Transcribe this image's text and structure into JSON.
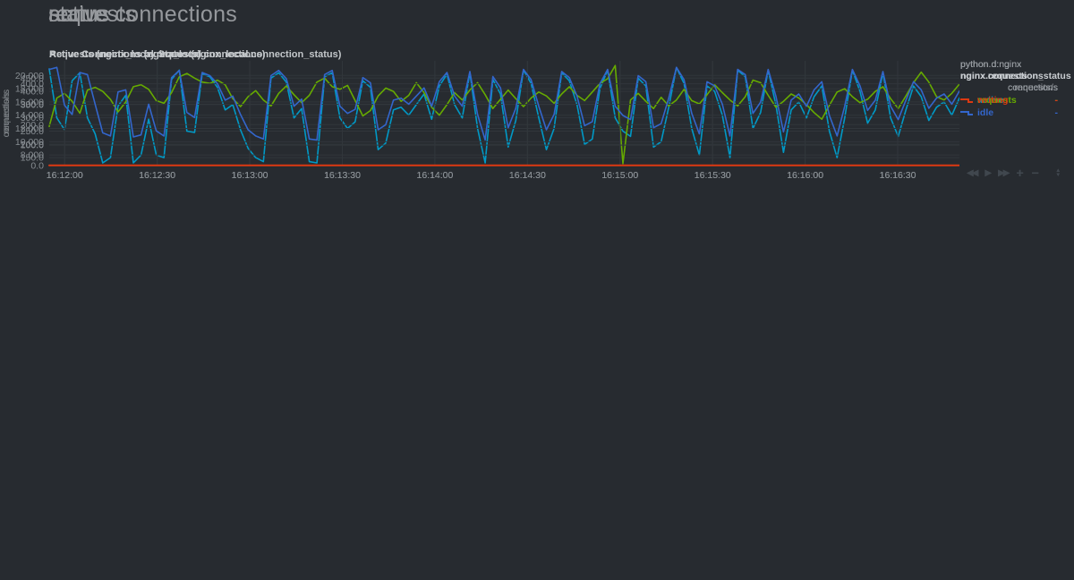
{
  "page": {
    "background": "#272b30",
    "grid_color": "#31363b",
    "tick_label_color": "#878d92",
    "axis_title_color": "#7b8085"
  },
  "toolbar": {
    "icons": [
      {
        "name": "pan-backward-icon",
        "glyph": "◀◀",
        "big": false
      },
      {
        "name": "play-icon",
        "glyph": "▶",
        "big": false
      },
      {
        "name": "fast-forward-icon",
        "glyph": "▶▶",
        "big": false
      },
      {
        "name": "zoom-in-icon",
        "glyph": "+",
        "big": true
      },
      {
        "name": "zoom-out-icon",
        "glyph": "−",
        "big": true
      }
    ],
    "resize_handle": {
      "name": "resize-handle-icon",
      "glyph_up": "▴",
      "glyph_down": "▾"
    }
  },
  "chart_data": [
    {
      "type": "line",
      "section_heading": "active connections",
      "title": "Active Connections (nginx_local.connections)",
      "ylabel": "connections",
      "unit": "connections",
      "source_label": "python.d:nginx",
      "context_label": "nginx.connections",
      "xlim_seconds": [
        0,
        295
      ],
      "x_start_time": "16:11:55",
      "x_tick_seconds": [
        5,
        35,
        65,
        95,
        125,
        155,
        185,
        215,
        245,
        275
      ],
      "x_tick_labels": [
        "16:12:00",
        "16:12:30",
        "16:13:00",
        "16:13:30",
        "16:14:00",
        "16:14:30",
        "16:15:00",
        "16:15:30",
        "16:16:00",
        "16:16:30"
      ],
      "ylim": [
        120,
        515
      ],
      "yticks": [
        {
          "v": 150,
          "label": "150.0"
        },
        {
          "v": 200,
          "label": "200.0"
        },
        {
          "v": 250,
          "label": "250.0"
        },
        {
          "v": 300,
          "label": "300.0"
        },
        {
          "v": 350,
          "label": "350.0"
        },
        {
          "v": 400,
          "label": "400.0"
        },
        {
          "v": 450,
          "label": "450.0"
        }
      ],
      "legend_position": "right",
      "grid": true,
      "series": [
        {
          "name": "active",
          "color": "#0099C6",
          "value": "-",
          "width": 1.6,
          "values": [
            485,
            300,
            255,
            440,
            470,
            300,
            240,
            130,
            150,
            345,
            385,
            130,
            160,
            295,
            160,
            150,
            445,
            480,
            250,
            245,
            465,
            455,
            415,
            330,
            350,
            255,
            185,
            150,
            135,
            450,
            470,
            435,
            300,
            335,
            135,
            130,
            455,
            470,
            300,
            260,
            285,
            440,
            415,
            180,
            205,
            330,
            340,
            310,
            350,
            390,
            295,
            420,
            465,
            350,
            300,
            470,
            260,
            130,
            445,
            390,
            190,
            290,
            480,
            430,
            300,
            180,
            260,
            470,
            440,
            350,
            200,
            220,
            410,
            480,
            300,
            250,
            230,
            450,
            420,
            190,
            210,
            340,
            490,
            430,
            260,
            160,
            420,
            400,
            310,
            150,
            480,
            455,
            260,
            320,
            480,
            350,
            170,
            330,
            360,
            300,
            380,
            420,
            250,
            150,
            300,
            480,
            400,
            280,
            330,
            470,
            300,
            230,
            330,
            420,
            380,
            290,
            340,
            360,
            310,
            375
          ]
        }
      ]
    },
    {
      "type": "line",
      "section_heading": "requests",
      "title": "Requests (nginx_local.requests)",
      "ylabel": "requests/s",
      "unit": "requests/s",
      "source_label": "python.d:nginx",
      "context_label": "nginx.requests",
      "xlim_seconds": [
        0,
        295
      ],
      "x_start_time": "16:11:55",
      "x_tick_seconds": [
        5,
        35,
        65,
        95,
        125,
        155,
        185,
        215,
        245,
        275
      ],
      "x_tick_labels": [
        "16:12:00",
        "16:12:30",
        "16:13:00",
        "16:13:30",
        "16:14:00",
        "16:14:30",
        "16:15:00",
        "16:15:30",
        "16:16:00",
        "16:16:30"
      ],
      "ylim": [
        6400,
        22200
      ],
      "yticks": [
        {
          "v": 8000,
          "label": "8,000"
        },
        {
          "v": 10000,
          "label": "10,000"
        },
        {
          "v": 12000,
          "label": "12,000"
        },
        {
          "v": 14000,
          "label": "14,000"
        },
        {
          "v": 16000,
          "label": "16,000"
        },
        {
          "v": 18000,
          "label": "18,000"
        },
        {
          "v": 20000,
          "label": "20,000"
        }
      ],
      "legend_position": "right",
      "grid": true,
      "series": [
        {
          "name": "requests",
          "color": "#66AA00",
          "value": "-",
          "width": 1.6,
          "values": [
            12300,
            16600,
            17300,
            16100,
            14300,
            17800,
            18200,
            17600,
            16400,
            14500,
            16000,
            18300,
            18600,
            17900,
            16200,
            15800,
            17400,
            19800,
            20300,
            19600,
            19000,
            18800,
            19300,
            18600,
            16500,
            15300,
            16800,
            17700,
            16300,
            15400,
            17300,
            18400,
            17100,
            15900,
            17000,
            19000,
            19600,
            18300,
            17900,
            18500,
            16200,
            13900,
            14700,
            16900,
            18100,
            17600,
            16100,
            17000,
            18900,
            17400,
            15200,
            14000,
            15600,
            17400,
            16300,
            17800,
            18900,
            17100,
            15000,
            16400,
            17800,
            16500,
            15300,
            16600,
            17500,
            16900,
            15800,
            17200,
            18300,
            17000,
            16200,
            17500,
            18800,
            19500,
            21500,
            6700,
            16300,
            17300,
            16100,
            15000,
            16700,
            15400,
            16300,
            17900,
            16200,
            15700,
            17100,
            18600,
            17400,
            16300,
            15400,
            16800,
            19300,
            18900,
            17000,
            15200,
            16100,
            17200,
            16600,
            15600,
            14400,
            13400,
            15500,
            17500,
            18000,
            16800,
            15900,
            16400,
            17600,
            18300,
            16500,
            15000,
            16900,
            18900,
            20500,
            19000,
            16800,
            16300,
            17300,
            18700
          ]
        }
      ]
    },
    {
      "type": "line",
      "section_heading": "status",
      "title": "Active Connections by Status (nginx_local.connection_status)",
      "ylabel": "connections",
      "unit": "connections",
      "source_label": "python.d:nginx",
      "context_label": "nginx.connection_status",
      "xlim_seconds": [
        0,
        295
      ],
      "x_start_time": "16:11:55",
      "x_tick_seconds": [
        5,
        35,
        65,
        95,
        125,
        155,
        185,
        215,
        245,
        275
      ],
      "x_tick_labels": [
        "16:12:00",
        "16:12:30",
        "16:13:00",
        "16:13:30",
        "16:14:00",
        "16:14:30",
        "16:15:00",
        "16:15:30",
        "16:16:00",
        "16:16:30"
      ],
      "ylim": [
        0,
        512
      ],
      "yticks": [
        {
          "v": 0,
          "label": "0.0"
        },
        {
          "v": 100,
          "label": "100.0"
        },
        {
          "v": 200,
          "label": "200.0"
        },
        {
          "v": 300,
          "label": "300.0"
        },
        {
          "v": 400,
          "label": "400.0"
        }
      ],
      "legend_position": "right",
      "grid": true,
      "series": [
        {
          "name": "writing",
          "color": "#DC3912",
          "value": "-",
          "width": 2,
          "values": [
            1,
            1
          ]
        },
        {
          "name": "idle",
          "color": "#3366CC",
          "value": "-",
          "width": 1.6,
          "values": [
            470,
            480,
            295,
            250,
            455,
            445,
            300,
            160,
            145,
            360,
            370,
            140,
            150,
            300,
            170,
            145,
            430,
            465,
            260,
            235,
            455,
            440,
            400,
            320,
            340,
            250,
            175,
            145,
            130,
            440,
            465,
            425,
            290,
            325,
            130,
            125,
            445,
            465,
            290,
            255,
            275,
            430,
            405,
            175,
            200,
            320,
            330,
            300,
            340,
            380,
            290,
            410,
            455,
            340,
            290,
            460,
            250,
            125,
            435,
            380,
            185,
            280,
            470,
            420,
            290,
            175,
            250,
            460,
            430,
            340,
            195,
            215,
            400,
            470,
            290,
            245,
            225,
            440,
            410,
            185,
            205,
            330,
            480,
            420,
            255,
            155,
            410,
            390,
            300,
            145,
            470,
            445,
            255,
            310,
            470,
            340,
            165,
            320,
            350,
            290,
            370,
            410,
            245,
            145,
            290,
            470,
            390,
            270,
            320,
            460,
            290,
            225,
            320,
            410,
            370,
            280,
            330,
            350,
            300,
            365
          ]
        }
      ]
    }
  ]
}
